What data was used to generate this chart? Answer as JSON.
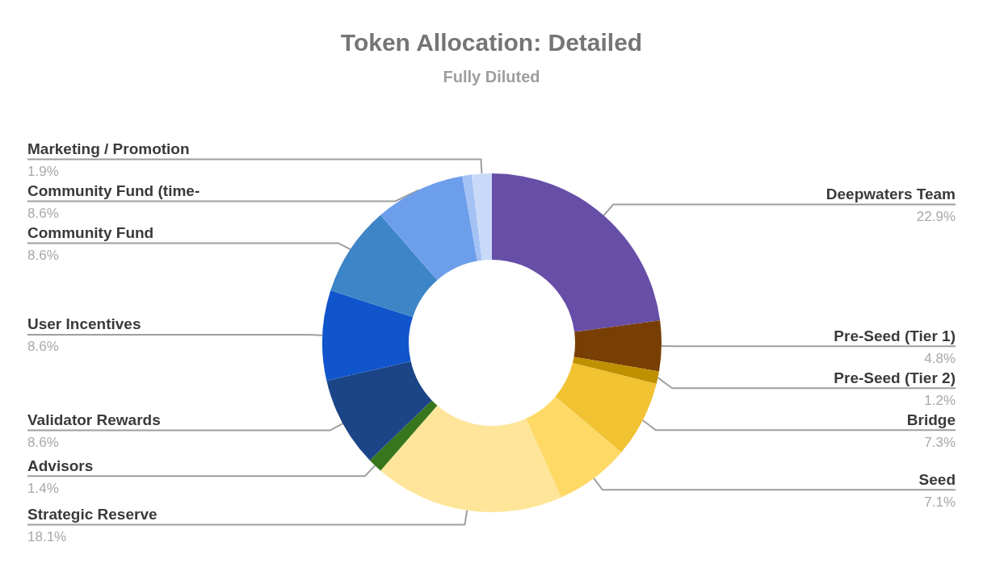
{
  "chart_data": {
    "type": "donut",
    "title": "Token Allocation: Detailed",
    "subtitle": "Fully Diluted",
    "categories": [
      "Deepwaters Team",
      "Pre-Seed (Tier 1)",
      "Pre-Seed (Tier 2)",
      "Bridge",
      "Seed",
      "Strategic Reserve",
      "Advisors",
      "Validator Rewards",
      "User Incentives",
      "Community Fund",
      "Community Fund (time-",
      null,
      "Marketing / Promotion"
    ],
    "values": [
      22.9,
      4.8,
      1.2,
      7.3,
      7.1,
      18.1,
      1.4,
      8.6,
      8.6,
      8.6,
      8.6,
      0.9,
      1.9
    ],
    "colors": [
      "#674ea7",
      "#783f04",
      "#bf9000",
      "#f1c232",
      "#ffd966",
      "#ffe599",
      "#38761d",
      "#1c4587",
      "#1155cc",
      "#3d85c6",
      "#6d9eeb",
      "#a4c2f4",
      "#c9daf8"
    ],
    "value_labels": [
      "22.9%",
      "4.8%",
      "1.2%",
      "7.3%",
      "7.1%",
      "18.1%",
      "1.4%",
      "8.6%",
      "8.6%",
      "8.6%",
      "8.6%",
      null,
      "1.9%"
    ]
  }
}
